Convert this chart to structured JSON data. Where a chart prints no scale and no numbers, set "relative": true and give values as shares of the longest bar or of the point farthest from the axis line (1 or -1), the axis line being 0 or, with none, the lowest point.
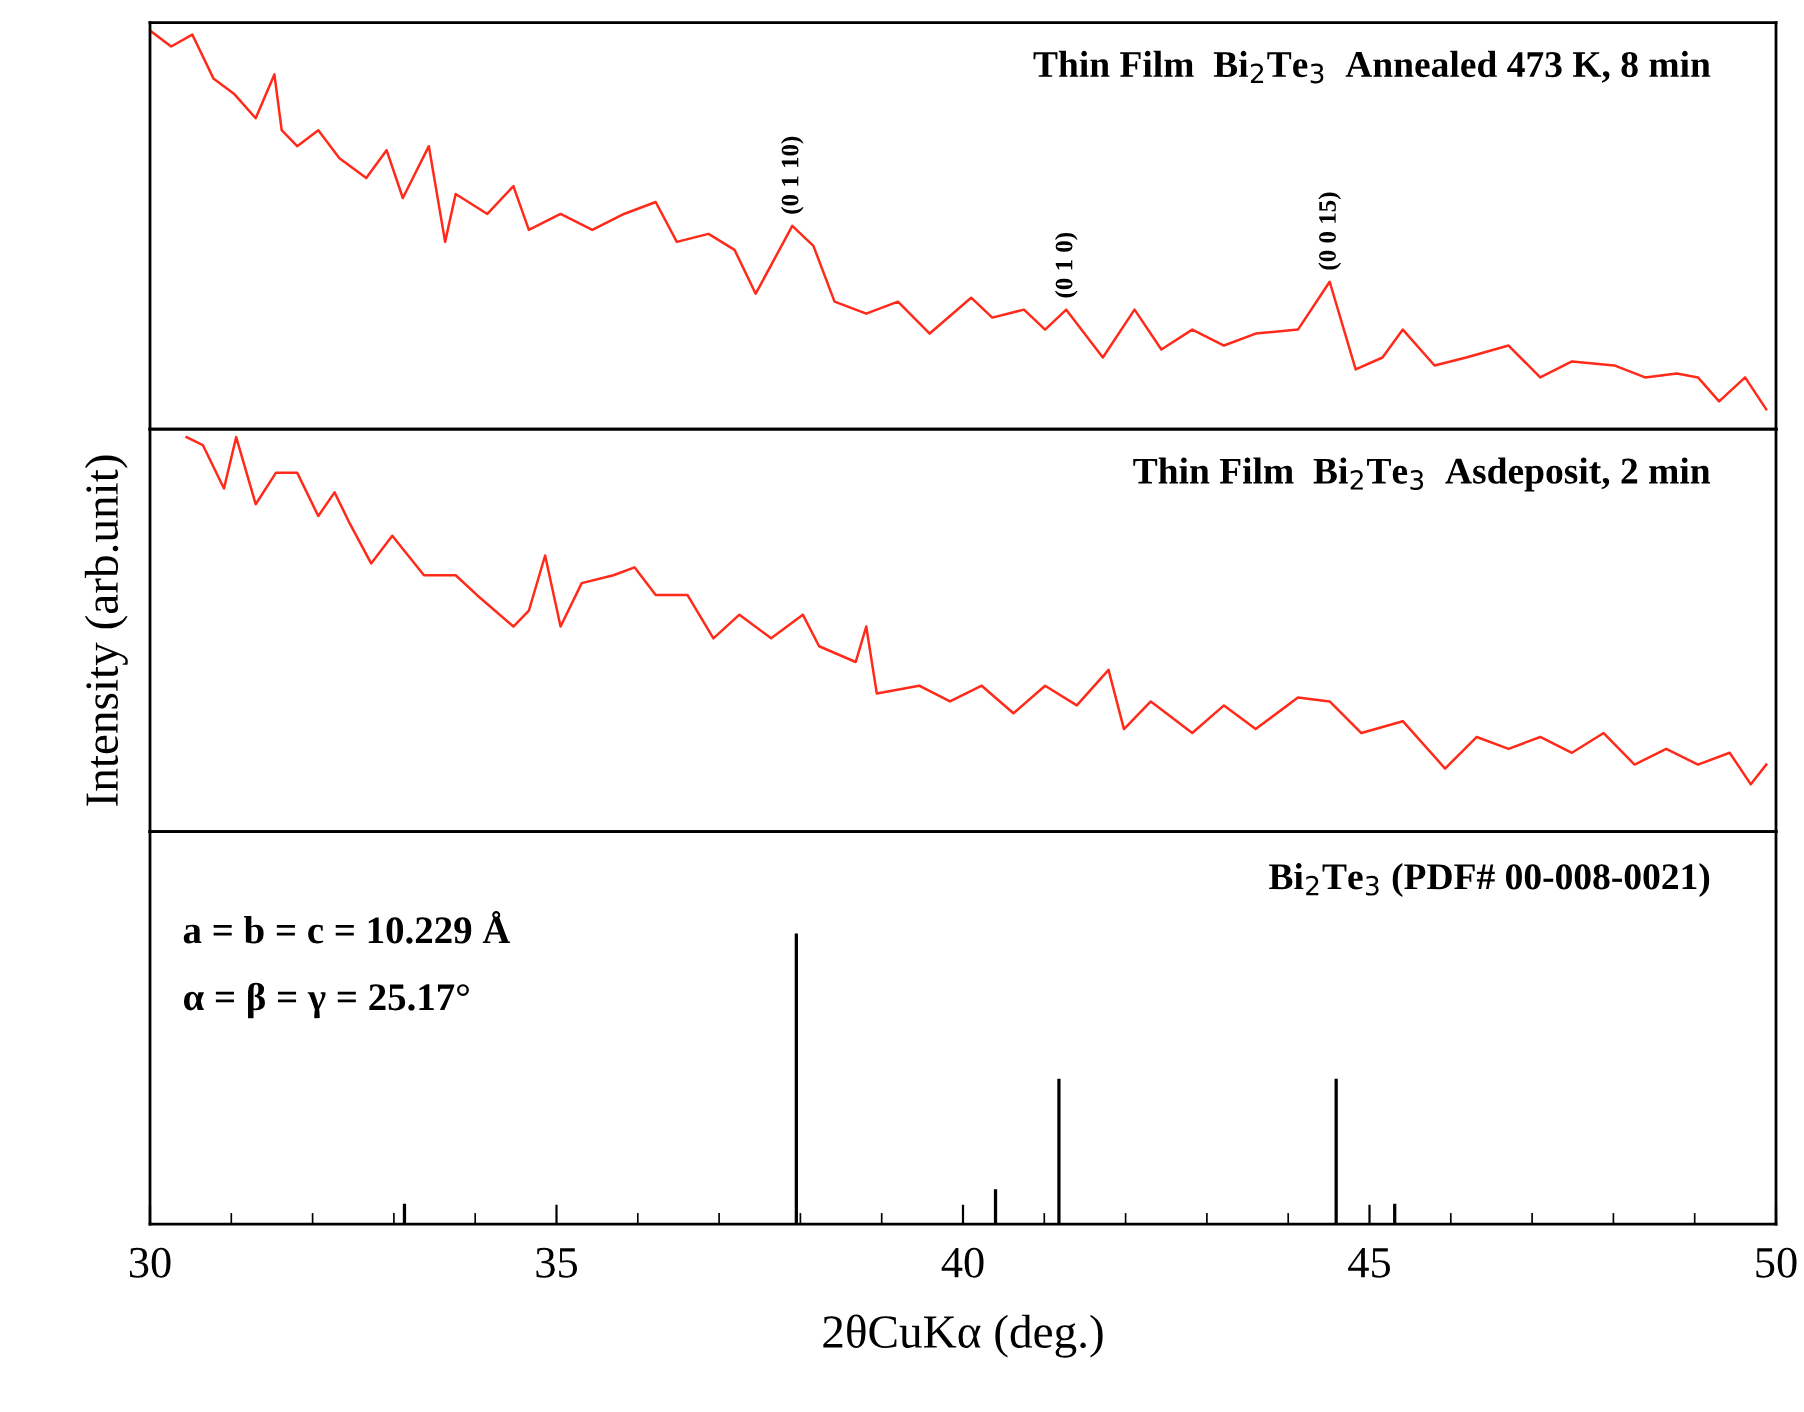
{
  "chart_data": [
    {
      "type": "line",
      "title": "Thin Film  Bi$_{2}$Te$_{3}$  Annealed 473 K, 8 min",
      "relative": true,
      "tick_labels": false,
      "xlim": [
        30,
        50
      ],
      "series": [
        {
          "color": "#ff2a1a",
          "x": [
            30.0,
            30.26,
            30.52,
            30.78,
            31.04,
            31.3,
            31.53,
            31.62,
            31.81,
            32.07,
            32.33,
            32.66,
            32.91,
            33.11,
            33.43,
            33.63,
            33.76,
            34.15,
            34.47,
            34.66,
            35.05,
            35.44,
            35.83,
            36.22,
            36.48,
            36.87,
            37.19,
            37.45,
            37.9,
            38.16,
            38.42,
            38.81,
            39.2,
            39.59,
            40.1,
            40.36,
            40.75,
            41.01,
            41.27,
            41.72,
            42.11,
            42.44,
            42.82,
            43.21,
            43.6,
            44.12,
            44.51,
            44.83,
            45.16,
            45.41,
            45.8,
            46.19,
            46.71,
            47.1,
            47.49,
            48.01,
            48.39,
            48.78,
            49.04,
            49.3,
            49.62,
            49.88
          ],
          "values": [
            1.0,
            0.96,
            0.99,
            0.88,
            0.84,
            0.78,
            0.89,
            0.75,
            0.71,
            0.75,
            0.68,
            0.63,
            0.7,
            0.58,
            0.71,
            0.47,
            0.59,
            0.54,
            0.61,
            0.5,
            0.54,
            0.5,
            0.54,
            0.57,
            0.47,
            0.49,
            0.45,
            0.34,
            0.51,
            0.46,
            0.32,
            0.29,
            0.32,
            0.24,
            0.33,
            0.28,
            0.3,
            0.25,
            0.3,
            0.18,
            0.3,
            0.2,
            0.25,
            0.21,
            0.24,
            0.25,
            0.37,
            0.15,
            0.18,
            0.25,
            0.16,
            0.18,
            0.21,
            0.13,
            0.17,
            0.16,
            0.13,
            0.14,
            0.13,
            0.07,
            0.13,
            0.05
          ]
        }
      ],
      "annotations": [
        {
          "text": "(0 1 10)",
          "x": 37.9,
          "y": 0.51
        },
        {
          "text": "(0 1 0)",
          "x": 41.27,
          "y": 0.3
        },
        {
          "text": "(0 0 15)",
          "x": 44.51,
          "y": 0.37
        }
      ]
    },
    {
      "type": "line",
      "title": "Thin Film  Bi$_{2}$Te$_{3}$  Asdeposit, 2 min",
      "ylabel": "Intensity (arb.unit)",
      "relative": true,
      "tick_labels": false,
      "xlim": [
        30,
        50
      ],
      "series": [
        {
          "color": "#ff2a1a",
          "x": [
            30.45,
            30.65,
            30.91,
            31.06,
            31.3,
            31.55,
            31.81,
            32.07,
            32.27,
            32.46,
            32.72,
            32.98,
            33.37,
            33.76,
            34.02,
            34.47,
            34.66,
            34.86,
            35.05,
            35.31,
            35.7,
            35.96,
            36.22,
            36.61,
            36.93,
            37.25,
            37.64,
            38.03,
            38.23,
            38.68,
            38.81,
            38.94,
            39.46,
            39.84,
            40.23,
            40.62,
            41.01,
            41.4,
            41.79,
            41.98,
            42.31,
            42.82,
            43.21,
            43.6,
            44.12,
            44.51,
            44.9,
            45.41,
            45.93,
            46.32,
            46.71,
            47.1,
            47.49,
            47.88,
            48.26,
            48.65,
            49.04,
            49.43,
            49.69,
            49.88
          ],
          "values": [
            1.0,
            0.98,
            0.87,
            1.0,
            0.83,
            0.91,
            0.91,
            0.8,
            0.86,
            0.78,
            0.68,
            0.75,
            0.65,
            0.65,
            0.6,
            0.52,
            0.56,
            0.7,
            0.52,
            0.63,
            0.65,
            0.67,
            0.6,
            0.6,
            0.49,
            0.55,
            0.49,
            0.55,
            0.47,
            0.43,
            0.52,
            0.35,
            0.37,
            0.33,
            0.37,
            0.3,
            0.37,
            0.32,
            0.41,
            0.26,
            0.33,
            0.25,
            0.32,
            0.26,
            0.34,
            0.33,
            0.25,
            0.28,
            0.16,
            0.24,
            0.21,
            0.24,
            0.2,
            0.25,
            0.17,
            0.21,
            0.17,
            0.2,
            0.12,
            0.17
          ]
        }
      ]
    },
    {
      "type": "bar",
      "title": "Bi$_{2}$Te$_{3}$ (PDF# 00-008-0021)",
      "xlabel": "2θCuKα (deg.)",
      "relative": true,
      "tick_labels": "x",
      "xlim": [
        30,
        50
      ],
      "xticks": [
        30,
        {
          "value": 31,
          "label": null
        },
        {
          "value": 32,
          "label": null
        },
        {
          "value": 33,
          "label": null
        },
        {
          "value": 34,
          "label": null
        },
        35,
        {
          "value": 36,
          "label": null
        },
        {
          "value": 37,
          "label": null
        },
        {
          "value": 38,
          "label": null
        },
        {
          "value": 39,
          "label": null
        },
        40,
        {
          "value": 41,
          "label": null
        },
        {
          "value": 42,
          "label": null
        },
        {
          "value": 43,
          "label": null
        },
        {
          "value": 44,
          "label": null
        },
        45,
        {
          "value": 46,
          "label": null
        },
        {
          "value": 47,
          "label": null
        },
        {
          "value": 48,
          "label": null
        },
        {
          "value": 49,
          "label": null
        },
        50
      ],
      "series": [
        {
          "color": "#000000",
          "x": [
            33.13,
            37.95,
            40.4,
            41.18,
            44.59,
            45.31
          ],
          "values": [
            0.07,
            1.0,
            0.12,
            0.5,
            0.5,
            0.07
          ]
        }
      ],
      "annotations": [
        "a = b = c = 10.229 Å",
        "α = β = γ = 25.17°"
      ]
    }
  ]
}
